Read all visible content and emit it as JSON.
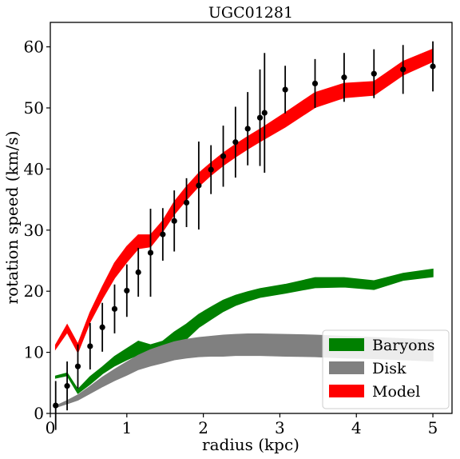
{
  "chart_data": {
    "type": "line",
    "title": "UGC01281",
    "xlabel": "radius (kpc)",
    "ylabel": "rotation speed (km/s)",
    "xlim": [
      0,
      5.25
    ],
    "ylim": [
      0,
      64
    ],
    "xticks": [
      0,
      1,
      2,
      3,
      4,
      5
    ],
    "yticks": [
      0,
      10,
      20,
      30,
      40,
      50,
      60
    ],
    "grid": false,
    "legend_position": "bottom-right",
    "bands": [
      {
        "name": "Baryons",
        "color": "#008000",
        "x": [
          0.07,
          0.22,
          0.36,
          0.52,
          0.68,
          0.84,
          1.0,
          1.15,
          1.31,
          1.47,
          1.62,
          1.78,
          1.94,
          2.1,
          2.26,
          2.42,
          2.58,
          2.74,
          3.07,
          3.46,
          3.84,
          4.23,
          4.61,
          5.0
        ],
        "lower": [
          5.8,
          6.2,
          3.3,
          4.8,
          6.5,
          7.8,
          8.8,
          9.6,
          8.3,
          9.0,
          10.8,
          12.2,
          14.1,
          15.4,
          16.7,
          17.7,
          18.4,
          19.0,
          19.7,
          20.6,
          20.7,
          20.3,
          21.8,
          22.4
        ],
        "upper": [
          6.1,
          6.6,
          3.9,
          6.0,
          7.6,
          9.3,
          10.6,
          11.8,
          11.2,
          11.8,
          13.3,
          14.6,
          16.2,
          17.4,
          18.5,
          19.3,
          19.9,
          20.4,
          21.1,
          22.2,
          22.2,
          21.7,
          22.9,
          23.6
        ]
      },
      {
        "name": "Disk",
        "color": "#808080",
        "x": [
          0.07,
          0.22,
          0.36,
          0.52,
          0.68,
          0.84,
          1.0,
          1.15,
          1.31,
          1.47,
          1.62,
          1.78,
          1.94,
          2.1,
          2.26,
          2.42,
          2.58,
          2.74,
          3.07,
          3.46,
          3.84,
          4.23,
          4.61,
          5.0
        ],
        "lower": [
          1.0,
          1.6,
          2.2,
          3.3,
          4.4,
          5.4,
          6.3,
          7.2,
          7.8,
          8.3,
          8.8,
          9.1,
          9.3,
          9.4,
          9.4,
          9.5,
          9.5,
          9.5,
          9.4,
          9.3,
          9.1,
          9.0,
          8.8,
          8.6
        ],
        "upper": [
          1.2,
          2.1,
          3.0,
          4.4,
          5.9,
          7.2,
          8.4,
          9.5,
          10.4,
          11.1,
          11.7,
          12.1,
          12.4,
          12.6,
          12.8,
          12.9,
          13.0,
          13.0,
          12.9,
          12.8,
          12.6,
          12.4,
          12.2,
          12.0
        ]
      },
      {
        "name": "Model",
        "color": "#ff0000",
        "x": [
          0.07,
          0.22,
          0.36,
          0.52,
          0.68,
          0.84,
          1.0,
          1.15,
          1.31,
          1.47,
          1.62,
          1.78,
          1.94,
          2.1,
          2.26,
          2.42,
          2.58,
          2.74,
          3.07,
          3.46,
          3.84,
          4.23,
          4.61,
          5.0
        ],
        "lower": [
          10.6,
          13.3,
          10.0,
          15.0,
          18.8,
          22.2,
          24.8,
          27.0,
          27.3,
          29.8,
          32.6,
          35.0,
          37.2,
          39.0,
          40.6,
          42.0,
          43.3,
          44.5,
          46.9,
          50.1,
          51.7,
          52.1,
          55.4,
          57.6
        ],
        "upper": [
          11.2,
          14.5,
          11.3,
          16.5,
          20.7,
          24.6,
          27.3,
          29.2,
          29.2,
          31.5,
          34.6,
          37.1,
          39.3,
          41.0,
          42.6,
          44.0,
          45.3,
          46.5,
          49.2,
          52.5,
          54.0,
          54.3,
          57.6,
          59.6
        ]
      }
    ],
    "observations": {
      "name": "data",
      "color": "#000000",
      "x": [
        0.07,
        0.22,
        0.36,
        0.52,
        0.68,
        0.84,
        1.0,
        1.15,
        1.31,
        1.47,
        1.62,
        1.78,
        1.94,
        2.1,
        2.26,
        2.42,
        2.58,
        2.74,
        2.8,
        3.07,
        3.46,
        3.84,
        4.23,
        4.61,
        5.0
      ],
      "y": [
        1.3,
        4.5,
        7.7,
        11.0,
        14.1,
        17.1,
        20.1,
        23.1,
        26.3,
        29.3,
        31.5,
        34.5,
        37.3,
        39.9,
        42.1,
        44.4,
        46.6,
        48.4,
        49.2,
        53.0,
        54.0,
        55.0,
        55.6,
        56.3,
        56.8
      ],
      "err": [
        4.0,
        4.0,
        3.6,
        3.8,
        4.0,
        4.0,
        4.3,
        4.0,
        7.2,
        4.3,
        5.0,
        4.0,
        7.2,
        4.0,
        5.0,
        5.8,
        6.0,
        7.9,
        9.8,
        3.9,
        4.0,
        4.0,
        4.0,
        4.0,
        4.1
      ]
    }
  }
}
